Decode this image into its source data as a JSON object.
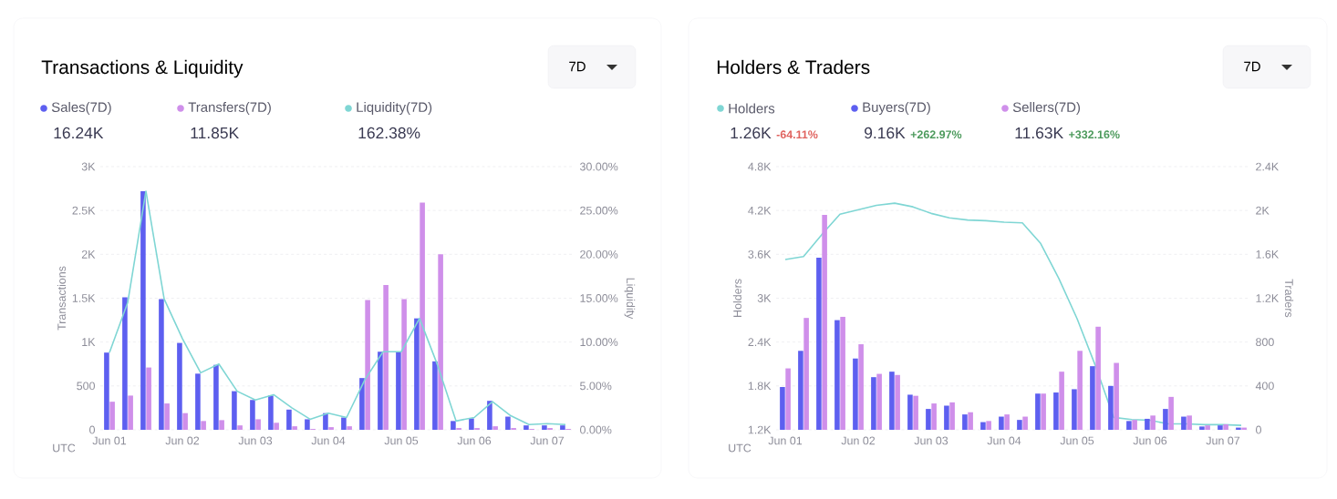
{
  "chart_data": [
    {
      "type": "bar",
      "title": "Transactions & Liquidity",
      "ylabel": "Transactions",
      "y2label": "Liquidity",
      "categories": [
        "Jun 01",
        null,
        null,
        null,
        "Jun 02",
        null,
        null,
        null,
        "Jun 03",
        null,
        null,
        null,
        "Jun 04",
        null,
        null,
        null,
        "Jun 05",
        null,
        null,
        null,
        "Jun 06",
        null,
        null,
        null,
        "Jun 07",
        null
      ],
      "ylim": [
        0,
        3000
      ],
      "yticks": [
        0,
        500,
        {
          "value": 1000,
          "label": "1K"
        },
        {
          "value": 1500,
          "label": "1.5K"
        },
        {
          "value": 2000,
          "label": "2K"
        },
        {
          "value": 2500,
          "label": "2.5K"
        },
        {
          "value": 3000,
          "label": "3K"
        }
      ],
      "y2lim": [
        0,
        30
      ],
      "y2ticks": [
        {
          "value": 0,
          "label": "0.00%"
        },
        {
          "value": 5,
          "label": "5.00%"
        },
        {
          "value": 10,
          "label": "10.00%"
        },
        {
          "value": 15,
          "label": "15.00%"
        },
        {
          "value": 20,
          "label": "20.00%"
        },
        {
          "value": 25,
          "label": "25.00%"
        },
        {
          "value": 30,
          "label": "30.00%"
        }
      ],
      "series": [
        {
          "name": "Sales(7D)",
          "color": "#5d5ff0",
          "values": [
            880,
            1510,
            2720,
            1490,
            990,
            640,
            740,
            440,
            340,
            390,
            230,
            120,
            190,
            140,
            590,
            890,
            890,
            1270,
            780,
            100,
            130,
            330,
            150,
            50,
            50,
            50
          ]
        },
        {
          "name": "Transfers(7D)",
          "color": "#cf8fea",
          "values": [
            320,
            390,
            710,
            300,
            190,
            100,
            110,
            50,
            120,
            80,
            40,
            10,
            30,
            40,
            1480,
            1650,
            1490,
            2590,
            2000,
            20,
            20,
            40,
            20,
            10,
            20,
            10
          ]
        },
        {
          "name": "Liquidity(7D)",
          "color": "#7fd6d4",
          "type": "line",
          "axis": "y2",
          "values": [
            8.8,
            14.5,
            27.2,
            14.9,
            10.4,
            6.5,
            7.5,
            4.4,
            3.4,
            4.0,
            2.5,
            1.2,
            1.9,
            1.4,
            5.7,
            8.9,
            8.9,
            12.7,
            7.3,
            1.0,
            1.4,
            3.2,
            1.6,
            0.6,
            0.7,
            0.6
          ]
        }
      ],
      "grid": "y",
      "legend": "top left",
      "annotations": [
        "16.24K",
        "11.85K",
        "162.38%",
        "7D",
        "UTC"
      ]
    },
    {
      "type": "bar",
      "title": "Holders & Traders",
      "ylabel": "Holders",
      "y2label": "Traders",
      "categories": [
        "Jun 01",
        null,
        null,
        null,
        "Jun 02",
        null,
        null,
        null,
        "Jun 03",
        null,
        null,
        null,
        "Jun 04",
        null,
        null,
        null,
        "Jun 05",
        null,
        null,
        null,
        "Jun 06",
        null,
        null,
        null,
        "Jun 07",
        null
      ],
      "ylim": [
        1200,
        4800
      ],
      "yticks": [
        {
          "value": 1200,
          "label": "1.2K"
        },
        {
          "value": 1800,
          "label": "1.8K"
        },
        {
          "value": 2400,
          "label": "2.4K"
        },
        {
          "value": 3000,
          "label": "3K"
        },
        {
          "value": 3600,
          "label": "3.6K"
        },
        {
          "value": 4200,
          "label": "4.2K"
        },
        {
          "value": 4800,
          "label": "4.8K"
        }
      ],
      "y2lim": [
        0,
        2400
      ],
      "y2ticks": [
        0,
        400,
        800,
        {
          "value": 1200,
          "label": "1.2K"
        },
        {
          "value": 1600,
          "label": "1.6K"
        },
        {
          "value": 2000,
          "label": "2K"
        },
        {
          "value": 2400,
          "label": "2.4K"
        }
      ],
      "series": [
        {
          "name": "Holders",
          "color": "#7fd6d4",
          "type": "line",
          "values": [
            3530,
            3570,
            3870,
            4150,
            4210,
            4270,
            4300,
            4250,
            4160,
            4100,
            4070,
            4060,
            4040,
            4030,
            3750,
            3270,
            2720,
            2080,
            1370,
            1340,
            1330,
            1280,
            1280,
            1270,
            1270,
            1260
          ]
        },
        {
          "name": "Buyers(7D)",
          "color": "#5d5ff0",
          "axis": "y2",
          "values": [
            390,
            720,
            1570,
            1000,
            650,
            480,
            530,
            320,
            190,
            220,
            140,
            70,
            120,
            90,
            330,
            340,
            370,
            580,
            400,
            80,
            100,
            190,
            120,
            30,
            40,
            20
          ]
        },
        {
          "name": "Sellers(7D)",
          "color": "#cf8fea",
          "axis": "y2",
          "values": [
            560,
            1020,
            1960,
            1030,
            780,
            510,
            500,
            310,
            240,
            250,
            160,
            80,
            140,
            120,
            330,
            530,
            720,
            940,
            610,
            90,
            130,
            300,
            130,
            40,
            50,
            20
          ]
        }
      ],
      "grid": "y",
      "legend": "top left",
      "annotations": [
        "1.26K",
        "-64.11%",
        "9.16K",
        "+262.97%",
        "11.63K",
        "+332.16%",
        "7D",
        "UTC"
      ]
    }
  ]
}
